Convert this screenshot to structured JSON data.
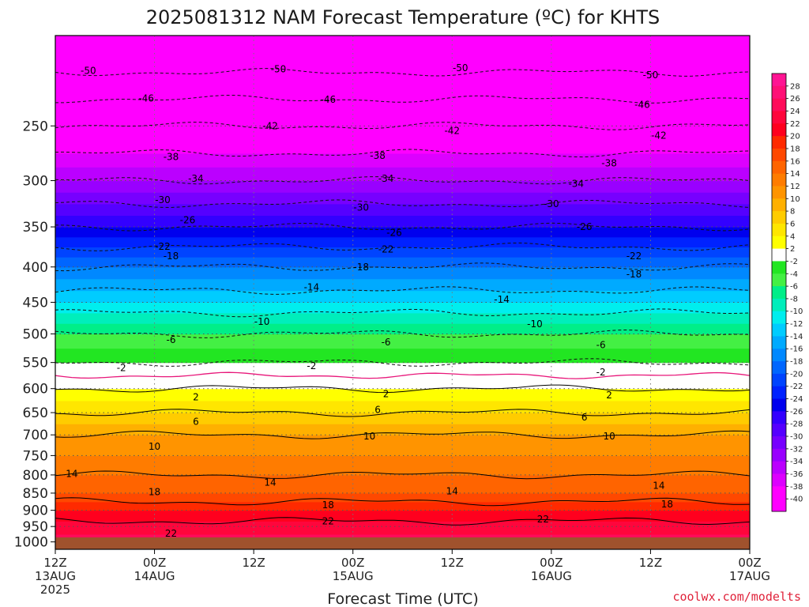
{
  "chart_data": {
    "type": "heatmap",
    "title": "2025081312 NAM Forecast Temperature (ºC) for KHTS",
    "xlabel": "Forecast Time (UTC)",
    "ylabel": "",
    "y_scale": "log-pressure",
    "y_inverted": true,
    "y_range": [
      1025,
      185
    ],
    "y_ticks": [
      250,
      300,
      350,
      400,
      450,
      500,
      550,
      600,
      650,
      700,
      750,
      800,
      850,
      900,
      950,
      1000
    ],
    "x_range": [
      0,
      84
    ],
    "x_ticks": [
      {
        "hour": 0,
        "lines": [
          "12Z",
          "13AUG",
          "2025"
        ]
      },
      {
        "hour": 12,
        "lines": [
          "00Z",
          "14AUG"
        ]
      },
      {
        "hour": 24,
        "lines": [
          "12Z"
        ]
      },
      {
        "hour": 36,
        "lines": [
          "00Z",
          "15AUG"
        ]
      },
      {
        "hour": 48,
        "lines": [
          "12Z"
        ]
      },
      {
        "hour": 60,
        "lines": [
          "00Z",
          "16AUG"
        ]
      },
      {
        "hour": 72,
        "lines": [
          "12Z"
        ]
      },
      {
        "hour": 84,
        "lines": [
          "00Z",
          "17AUG"
        ]
      }
    ],
    "grid": true,
    "ground_level_hpa": 985,
    "colorbar": {
      "position": "right",
      "labels": [
        28,
        26,
        24,
        22,
        20,
        18,
        16,
        14,
        12,
        10,
        8,
        6,
        4,
        2,
        -2,
        -4,
        -6,
        -8,
        -10,
        -12,
        -14,
        -16,
        -18,
        -20,
        -22,
        -24,
        -26,
        -28,
        -30,
        -32,
        -34,
        -36,
        -38,
        -40
      ],
      "colors": [
        "#ff1493",
        "#ff1076",
        "#ff0b5a",
        "#ff063c",
        "#ff001e",
        "#ff2a00",
        "#ff4800",
        "#ff6400",
        "#ff7c00",
        "#ff9400",
        "#ffb000",
        "#ffcc00",
        "#ffe600",
        "#ffff00",
        "#ffffff",
        "#22e622",
        "#44f044",
        "#00ee88",
        "#00eebb",
        "#00eeee",
        "#00ccff",
        "#00aaff",
        "#0088ff",
        "#0066ff",
        "#0044ff",
        "#0022ff",
        "#0000ee",
        "#3300ff",
        "#5500ff",
        "#7700ff",
        "#9900ff",
        "#bb00ff",
        "#dd00ff",
        "#ff00ff",
        "#ff00ff"
      ]
    },
    "levels_profile": [
      {
        "p": 1000,
        "t": 25
      },
      {
        "p": 950,
        "t": 23
      },
      {
        "p": 900,
        "t": 20
      },
      {
        "p": 850,
        "t": 16
      },
      {
        "p": 800,
        "t": 14
      },
      {
        "p": 750,
        "t": 12
      },
      {
        "p": 700,
        "t": 10
      },
      {
        "p": 650,
        "t": 6
      },
      {
        "p": 600,
        "t": 2
      },
      {
        "p": 550,
        "t": -2
      },
      {
        "p": 500,
        "t": -6
      },
      {
        "p": 450,
        "t": -12
      },
      {
        "p": 400,
        "t": -18
      },
      {
        "p": 350,
        "t": -26
      },
      {
        "p": 300,
        "t": -34
      },
      {
        "p": 250,
        "t": -42
      },
      {
        "p": 200,
        "t": -52
      }
    ],
    "contours": [
      {
        "value": -50,
        "labels": [
          [
            4,
            208
          ],
          [
            27,
            207
          ],
          [
            49,
            206
          ],
          [
            72,
            211
          ]
        ]
      },
      {
        "value": -46,
        "labels": [
          [
            11,
            228
          ],
          [
            33,
            229
          ],
          [
            71,
            233
          ]
        ]
      },
      {
        "value": -42,
        "labels": [
          [
            26,
            250
          ],
          [
            48,
            254
          ],
          [
            73,
            258
          ]
        ]
      },
      {
        "value": -38,
        "labels": [
          [
            14,
            277
          ],
          [
            39,
            276
          ],
          [
            67,
            283
          ]
        ]
      },
      {
        "value": -34,
        "labels": [
          [
            17,
            298
          ],
          [
            40,
            298
          ],
          [
            63,
            303
          ]
        ]
      },
      {
        "value": -30,
        "labels": [
          [
            13,
            320
          ],
          [
            37,
            328
          ],
          [
            60,
            324
          ]
        ]
      },
      {
        "value": -26,
        "labels": [
          [
            16,
            342
          ],
          [
            41,
            357
          ],
          [
            64,
            350
          ]
        ]
      },
      {
        "value": -22,
        "labels": [
          [
            13,
            374
          ],
          [
            40,
            377
          ],
          [
            70,
            386
          ]
        ]
      },
      {
        "value": -18,
        "labels": [
          [
            14,
            386
          ],
          [
            37,
            400
          ],
          [
            70,
            410
          ]
        ]
      },
      {
        "value": -14,
        "labels": [
          [
            31,
            428
          ],
          [
            54,
            446
          ]
        ]
      },
      {
        "value": -10,
        "labels": [
          [
            25,
            480
          ],
          [
            58,
            484
          ]
        ]
      },
      {
        "value": -6,
        "labels": [
          [
            14,
            510
          ],
          [
            40,
            514
          ],
          [
            66,
            519
          ]
        ]
      },
      {
        "value": -2,
        "labels": [
          [
            8,
            560
          ],
          [
            31,
            556
          ],
          [
            66,
            568
          ]
        ]
      },
      {
        "value": 2,
        "labels": [
          [
            17,
            617
          ],
          [
            40,
            611
          ],
          [
            67,
            613
          ]
        ]
      },
      {
        "value": 6,
        "labels": [
          [
            17,
            670
          ],
          [
            39,
            644
          ],
          [
            64,
            660
          ]
        ]
      },
      {
        "value": 10,
        "labels": [
          [
            12,
            728
          ],
          [
            38,
            703
          ],
          [
            67,
            703
          ]
        ]
      },
      {
        "value": 14,
        "labels": [
          [
            2,
            797
          ],
          [
            26,
            820
          ],
          [
            48,
            845
          ],
          [
            73,
            829
          ]
        ]
      },
      {
        "value": 18,
        "labels": [
          [
            12,
            847
          ],
          [
            33,
            885
          ],
          [
            74,
            882
          ]
        ]
      },
      {
        "value": 22,
        "labels": [
          [
            14,
            972
          ],
          [
            33,
            934
          ],
          [
            59,
            927
          ]
        ]
      }
    ]
  },
  "credit": "coolwx.com/modelts"
}
